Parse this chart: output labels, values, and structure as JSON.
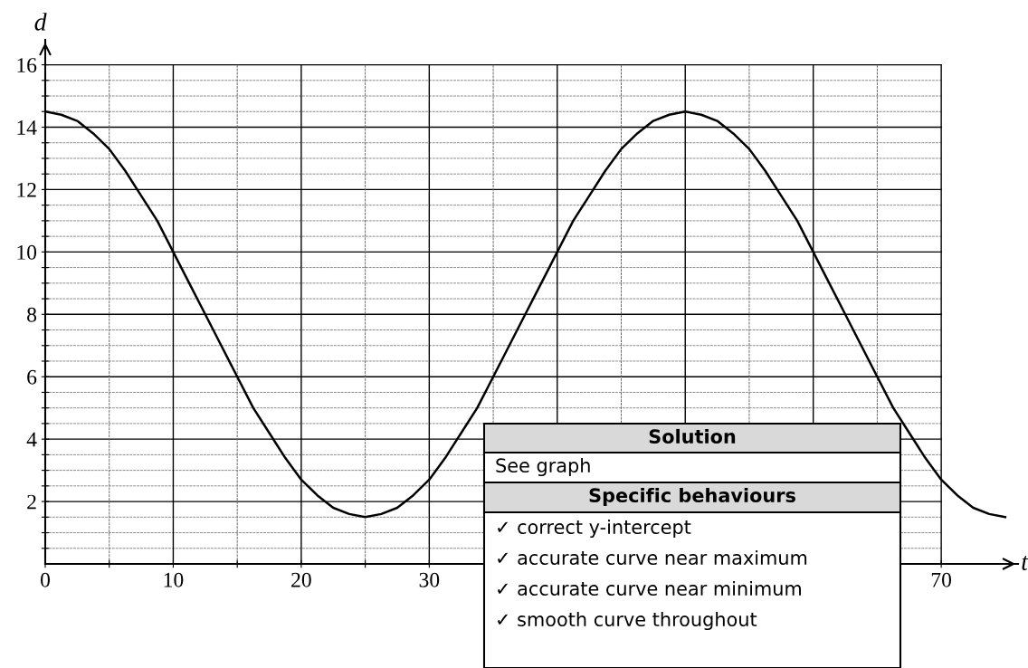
{
  "chart_data": {
    "type": "line",
    "xlabel": "t",
    "ylabel": "d",
    "x": [
      0,
      1.25,
      2.5,
      3.75,
      5,
      6.25,
      7.5,
      8.75,
      10,
      11.25,
      12.5,
      13.75,
      15,
      16.25,
      17.5,
      18.75,
      20,
      21.25,
      22.5,
      23.75,
      25,
      26.25,
      27.5,
      28.75,
      30,
      31.25,
      32.5,
      33.75,
      35,
      36.25,
      37.5,
      38.75,
      40,
      41.25,
      42.5,
      43.75,
      45,
      46.25,
      47.5,
      48.75,
      50,
      51.25,
      52.5,
      53.75,
      55,
      56.25,
      57.5,
      58.75,
      60,
      61.25,
      62.5,
      63.75,
      65,
      66.25,
      67.5,
      68.75,
      70,
      71.25,
      72.5,
      73.75,
      75
    ],
    "series": [
      {
        "color": "#000000",
        "values": [
          14.5,
          14.4,
          14.2,
          13.8,
          13.3,
          12.6,
          11.8,
          11.0,
          10.0,
          9.0,
          8.0,
          7.0,
          6.0,
          5.0,
          4.2,
          3.4,
          2.7,
          2.2,
          1.8,
          1.6,
          1.5,
          1.6,
          1.8,
          2.2,
          2.7,
          3.4,
          4.2,
          5.0,
          6.0,
          7.0,
          8.0,
          9.0,
          10.0,
          11.0,
          11.8,
          12.6,
          13.3,
          13.8,
          14.2,
          14.4,
          14.5,
          14.4,
          14.2,
          13.8,
          13.3,
          12.6,
          11.8,
          11.0,
          10.0,
          9.0,
          8.0,
          7.0,
          6.0,
          5.0,
          4.2,
          3.4,
          2.7,
          2.2,
          1.8,
          1.6,
          1.5
        ]
      }
    ],
    "xlim": [
      0,
      76
    ],
    "ylim": [
      0,
      16.8
    ],
    "xticks": [
      0,
      {
        "value": 5,
        "label": null
      },
      10,
      {
        "value": 15,
        "label": null
      },
      20,
      {
        "value": 25,
        "label": null
      },
      30,
      {
        "value": 35,
        "label": null
      },
      {
        "value": 40,
        "label": null
      },
      {
        "value": 45,
        "label": null
      },
      {
        "value": 50,
        "label": null
      },
      {
        "value": 55,
        "label": null
      },
      {
        "value": 60,
        "label": null
      },
      {
        "value": 65,
        "label": null
      },
      70
    ],
    "yticks": [
      {
        "value": 0.5,
        "label": null
      },
      {
        "value": 1,
        "label": null
      },
      {
        "value": 1.5,
        "label": null
      },
      2,
      {
        "value": 2.5,
        "label": null
      },
      {
        "value": 3,
        "label": null
      },
      {
        "value": 3.5,
        "label": null
      },
      4,
      {
        "value": 4.5,
        "label": null
      },
      {
        "value": 5,
        "label": null
      },
      {
        "value": 5.5,
        "label": null
      },
      6,
      {
        "value": 6.5,
        "label": null
      },
      {
        "value": 7,
        "label": null
      },
      {
        "value": 7.5,
        "label": null
      },
      8,
      {
        "value": 8.5,
        "label": null
      },
      {
        "value": 9,
        "label": null
      },
      {
        "value": 9.5,
        "label": null
      },
      10,
      {
        "value": 10.5,
        "label": null
      },
      {
        "value": 11,
        "label": null
      },
      {
        "value": 11.5,
        "label": null
      },
      12,
      {
        "value": 12.5,
        "label": null
      },
      {
        "value": 13,
        "label": null
      },
      {
        "value": 13.5,
        "label": null
      },
      14,
      {
        "value": 14.5,
        "label": null
      },
      {
        "value": 15,
        "label": null
      },
      {
        "value": 15.5,
        "label": null
      },
      16
    ],
    "grid": true,
    "line_style": "solid",
    "marker": "none",
    "annotations": [
      "Solution",
      "See graph",
      "Specific behaviours",
      "✓ correct y-intercept",
      "✓ accurate curve near maximum",
      "✓ accurate curve near minimum",
      "✓ smooth curve throughout"
    ]
  }
}
